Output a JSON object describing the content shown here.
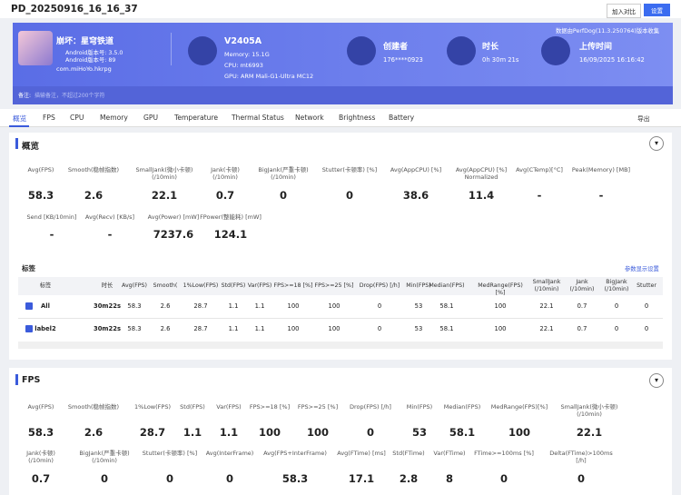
{
  "header": {
    "title": "PD_20250916_16_16_37",
    "buttons": [
      "加入对比",
      "设置"
    ]
  },
  "banner": {
    "source": "数据由PerfDog(11.3.250764)版本收集",
    "app": {
      "name": "崩坏：星穹铁道",
      "lines": [
        "Android版本号: 3.5.0",
        "Android版本号: 89"
      ],
      "package": "com.miHoYo.hkrpg"
    },
    "device": {
      "model": "V2405A",
      "details": [
        "Memory: 15.1G",
        "CPU: mt6993",
        "GPU: ARM Mali-G1-Ultra MC12"
      ]
    },
    "creator": {
      "label": "创建者",
      "value": "176****0923"
    },
    "duration": {
      "label": "时长",
      "value": "0h 30m 21s"
    },
    "upload": {
      "label": "上传时间",
      "value": "16/09/2025 16:16:42"
    },
    "note_label": "备注:",
    "note_placeholder": "描输备注，不超过200个字符"
  },
  "tabs": [
    "概览",
    "FPS",
    "CPU",
    "Memory",
    "GPU",
    "Temperature",
    "Thermal Status",
    "Network",
    "Brightness",
    "Battery"
  ],
  "export": "导出",
  "overview": {
    "title": "概览",
    "metrics": [
      [
        {
          "label": "Avg(FPS)",
          "value": "58.3"
        },
        {
          "label": "Smooth(稳帧指数)",
          "value": "2.6"
        },
        {
          "label": "SmallJank(微小卡顿)\n(/10min)",
          "value": "22.1"
        },
        {
          "label": "Jank(卡顿)\n(/10min)",
          "value": "0.7"
        },
        {
          "label": "BigJank(严重卡顿)\n(/10min)",
          "value": "0"
        },
        {
          "label": "Stutter(卡顿率) [%]",
          "value": "0"
        },
        {
          "label": "Avg(AppCPU) [%]",
          "value": "38.6"
        },
        {
          "label": "Avg(AppCPU) [%]\nNormalized",
          "value": "11.4"
        },
        {
          "label": "Avg(CTemp)[°C]",
          "value": "-"
        },
        {
          "label": "Peak(Memory) [MB]",
          "value": "-"
        }
      ],
      [
        {
          "label": "Send [KB/10min]",
          "value": "-"
        },
        {
          "label": "Avg(Recv) [KB/s]",
          "value": "-"
        },
        {
          "label": "Avg(Power) [mW]",
          "value": "7237.6"
        },
        {
          "label": "FPower(整能耗) [mW]",
          "value": "124.1"
        }
      ]
    ]
  },
  "tags": {
    "title": "标签",
    "settings": "参数显示设置",
    "columns": [
      "标签",
      "时长",
      "Avg(FPS)",
      "Smooth(",
      "1%Low(FPS)",
      "Std(FPS)",
      "Var(FPS)",
      "FPS>=18 [%]",
      "FPS>=25 [%]",
      "Drop(FPS) [/h]",
      "Min(FPS)",
      "Median(FPS)",
      "MedRange(FPS)[%]",
      "SmallJank\n(/10min)",
      "Jank\n(/10min)",
      "BigJank\n(/10min)",
      "Stutter"
    ],
    "rows": [
      [
        "All",
        "30m22s",
        "58.3",
        "2.6",
        "28.7",
        "1.1",
        "1.1",
        "100",
        "100",
        "0",
        "53",
        "58.1",
        "100",
        "22.1",
        "0.7",
        "0",
        "0"
      ],
      [
        "label2",
        "30m22s",
        "58.3",
        "2.6",
        "28.7",
        "1.1",
        "1.1",
        "100",
        "100",
        "0",
        "53",
        "58.1",
        "100",
        "22.1",
        "0.7",
        "0",
        "0"
      ]
    ]
  },
  "fps": {
    "title": "FPS",
    "metrics": [
      [
        {
          "label": "Avg(FPS)",
          "value": "58.3"
        },
        {
          "label": "Smooth(稳帧指数)",
          "value": "2.6"
        },
        {
          "label": "1%Low(FPS)",
          "value": "28.7"
        },
        {
          "label": "Std(FPS)",
          "value": "1.1"
        },
        {
          "label": "Var(FPS)",
          "value": "1.1"
        },
        {
          "label": "FPS>=18 [%]",
          "value": "100"
        },
        {
          "label": "FPS>=25 [%]",
          "value": "100"
        },
        {
          "label": "Drop(FPS) [/h]",
          "value": "0"
        },
        {
          "label": "Min(FPS)",
          "value": "53"
        },
        {
          "label": "Median(FPS)",
          "value": "58.1"
        },
        {
          "label": "MedRange(FPS)[%]",
          "value": "100"
        },
        {
          "label": "SmallJank(微小卡顿)\n(/10min)",
          "value": "22.1"
        }
      ],
      [
        {
          "label": "Jank(卡顿)\n(/10min)",
          "value": "0.7"
        },
        {
          "label": "BigJank(严重卡顿)\n(/10min)",
          "value": "0"
        },
        {
          "label": "Stutter(卡顿率) [%]",
          "value": "0"
        },
        {
          "label": "Avg(InterFrame)",
          "value": "0"
        },
        {
          "label": "Avg(FPS+InterFrame)",
          "value": "58.3"
        },
        {
          "label": "Avg(FTime) [ms]",
          "value": "17.1"
        },
        {
          "label": "Std(FTime)",
          "value": "2.8"
        },
        {
          "label": "Var(FTime)",
          "value": "8"
        },
        {
          "label": "FTime>=100ms [%]",
          "value": "0"
        },
        {
          "label": "Delta(FTime)>100ms [/h]",
          "value": "0"
        }
      ]
    ]
  }
}
